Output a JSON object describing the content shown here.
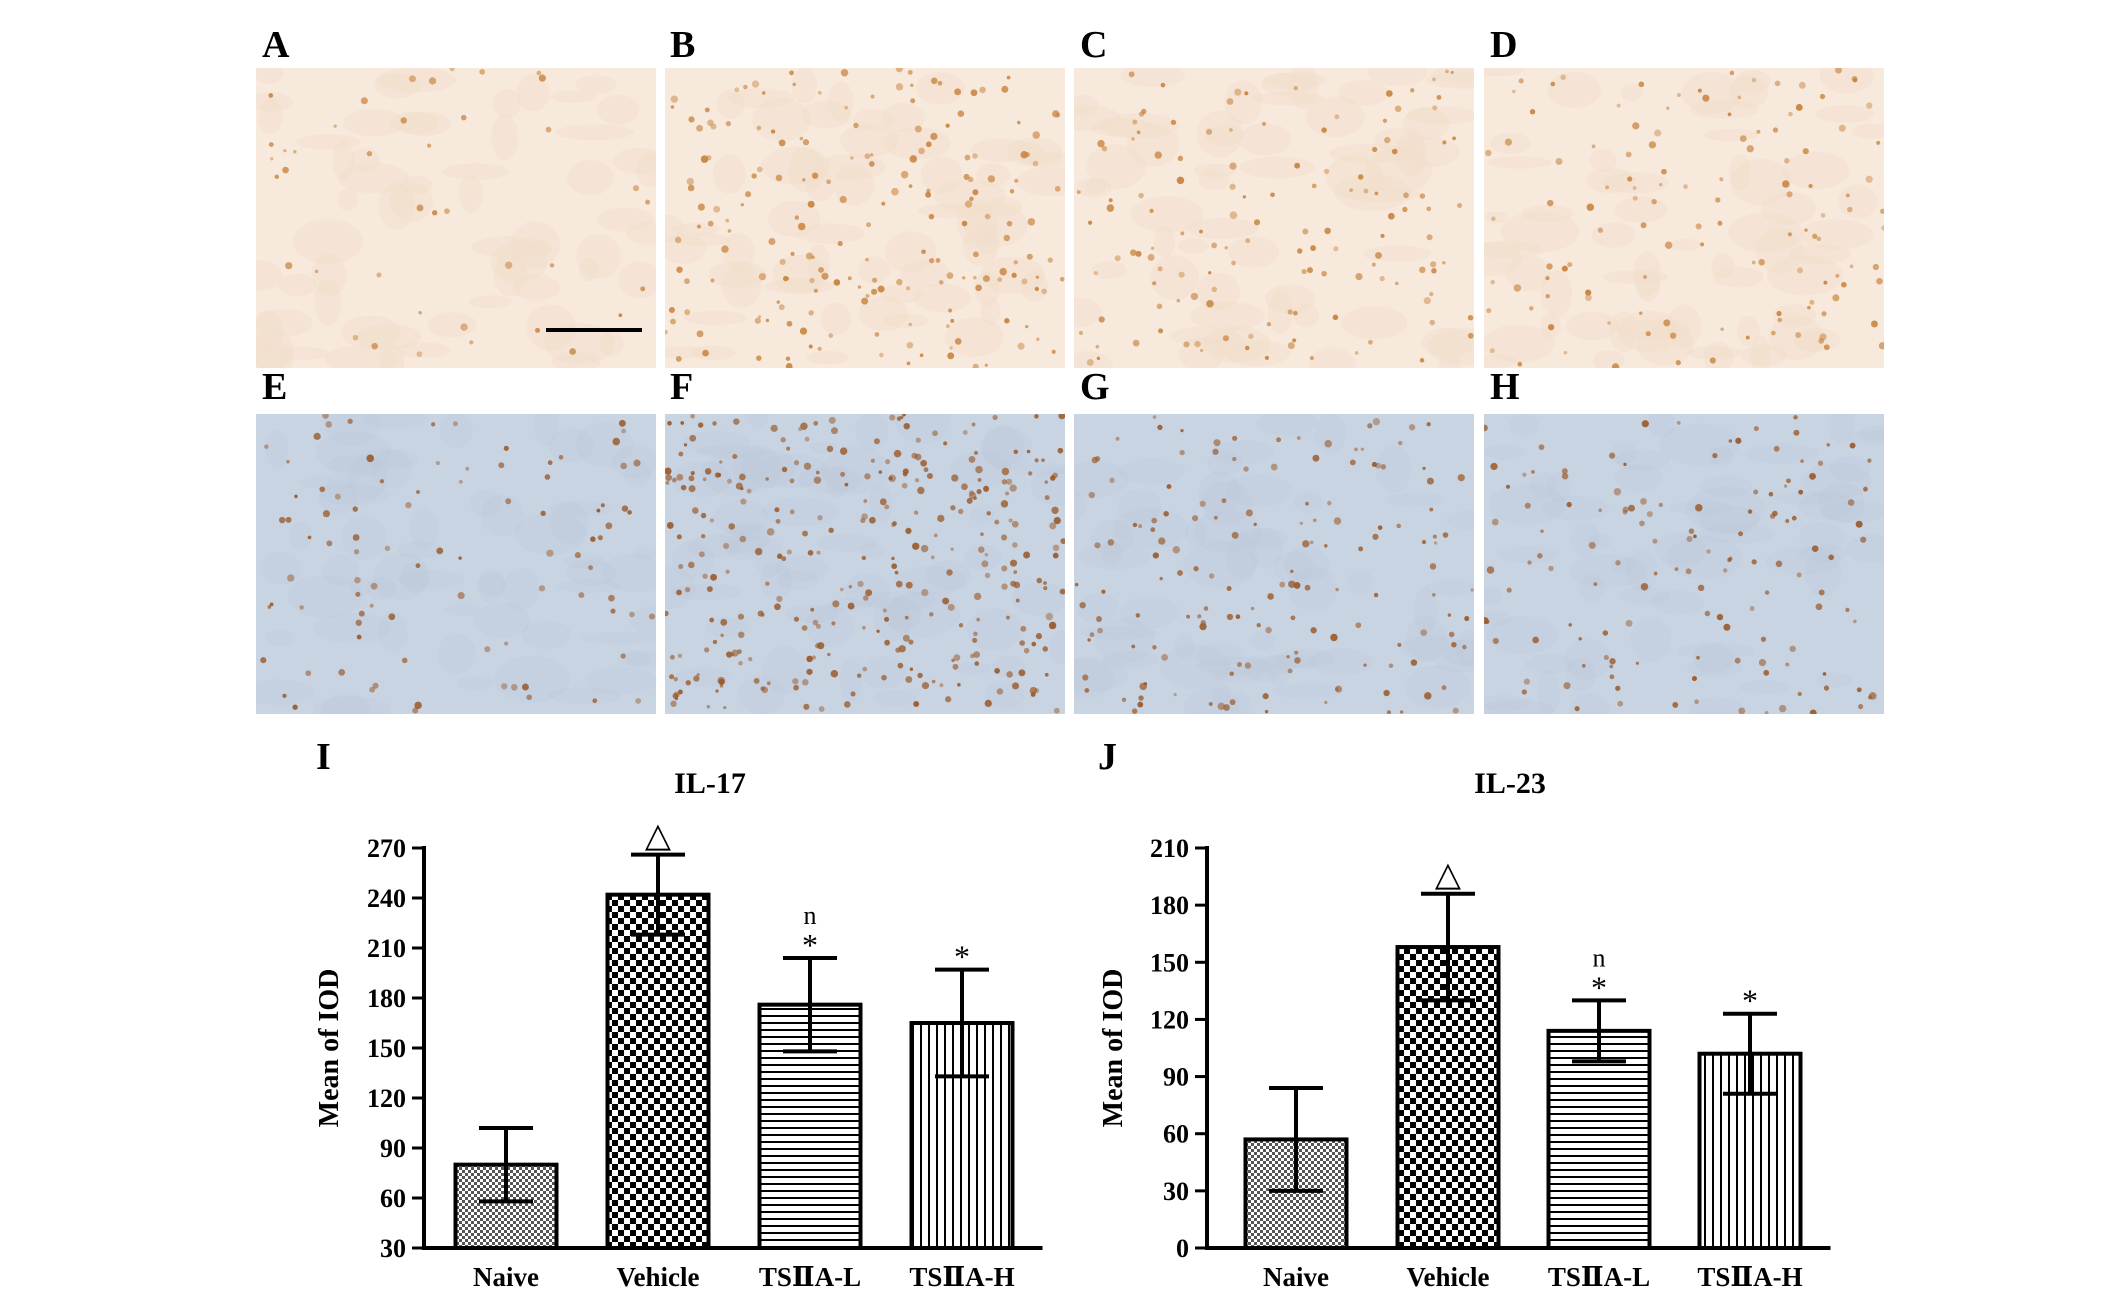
{
  "panels": [
    {
      "label": "A",
      "tone": "pink",
      "density": 40,
      "scalebar": true
    },
    {
      "label": "B",
      "tone": "pink",
      "density": 190,
      "scalebar": false
    },
    {
      "label": "C",
      "tone": "pink",
      "density": 130,
      "scalebar": false
    },
    {
      "label": "D",
      "tone": "pink",
      "density": 120,
      "scalebar": false
    },
    {
      "label": "E",
      "tone": "blue",
      "density": 90,
      "scalebar": false
    },
    {
      "label": "F",
      "tone": "blue",
      "density": 320,
      "scalebar": false
    },
    {
      "label": "G",
      "tone": "blue",
      "density": 150,
      "scalebar": false
    },
    {
      "label": "H",
      "tone": "blue",
      "density": 130,
      "scalebar": false
    }
  ],
  "colors": {
    "pink_bg": "#f7e9dc",
    "blue_bg": "#c9d4e3",
    "cell_pink": "#c8843f",
    "cell_blue": "#9a5a2a",
    "ink": "#000000"
  },
  "chart_data": [
    {
      "type": "bar",
      "panel_label": "I",
      "title": "IL-17",
      "ylabel": "Mean of IOD",
      "xlabel": "",
      "categories": [
        "Naive",
        "Vehicle",
        "TSⅡA-L",
        "TSⅡA-H"
      ],
      "values": [
        80,
        242,
        176,
        165
      ],
      "errors": [
        22,
        24,
        28,
        32
      ],
      "annotations": [
        [
          "",
          ""
        ],
        [
          "△",
          ""
        ],
        [
          "n",
          "*"
        ],
        [
          "",
          "*"
        ]
      ],
      "patterns": [
        "fine-check",
        "checker",
        "horizontal",
        "vertical"
      ],
      "ylim": [
        30,
        270
      ],
      "yticks": [
        30,
        60,
        90,
        120,
        150,
        180,
        210,
        240,
        270
      ],
      "grid": false
    },
    {
      "type": "bar",
      "panel_label": "J",
      "title": "IL-23",
      "ylabel": "Mean of IOD",
      "xlabel": "",
      "categories": [
        "Naive",
        "Vehicle",
        "TSⅡA-L",
        "TSⅡA-H"
      ],
      "values": [
        57,
        158,
        114,
        102
      ],
      "errors": [
        27,
        28,
        16,
        21
      ],
      "annotations": [
        [
          "",
          ""
        ],
        [
          "△",
          ""
        ],
        [
          "n",
          "*"
        ],
        [
          "",
          "*"
        ]
      ],
      "patterns": [
        "fine-check",
        "checker",
        "horizontal",
        "vertical"
      ],
      "ylim": [
        0,
        210
      ],
      "yticks": [
        0,
        30,
        60,
        90,
        120,
        150,
        180,
        210
      ],
      "grid": false
    }
  ]
}
